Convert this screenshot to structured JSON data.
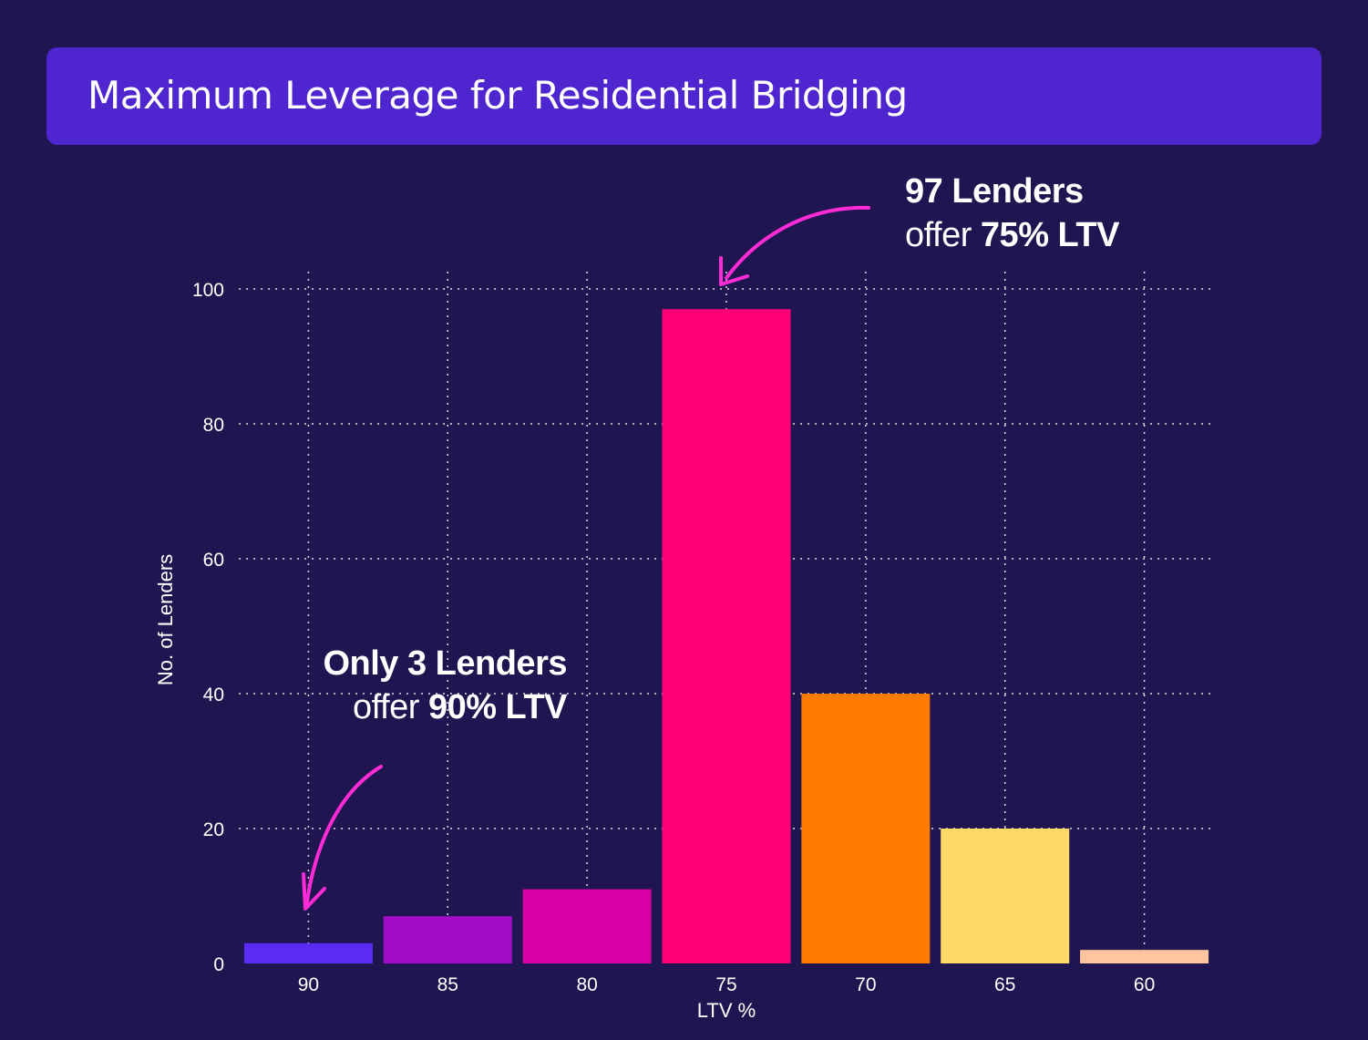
{
  "title": "Maximum Leverage for Residential Bridging",
  "colors": {
    "background": "#1f1550",
    "banner": "#4e25cf",
    "grid": "#ffffff",
    "text": "#ffffff",
    "arrow": "#ff2bd6"
  },
  "annotations": {
    "top": {
      "line1": "97 Lenders",
      "line2_prefix": "offer ",
      "line2_strong": "75% LTV"
    },
    "left": {
      "line1": "Only 3 Lenders",
      "line2_prefix": "offer ",
      "line2_strong": "90% LTV"
    }
  },
  "chart_data": {
    "type": "bar",
    "title": "Maximum Leverage for Residential Bridging",
    "xlabel": "LTV %",
    "ylabel": "No. of Lenders",
    "categories": [
      "90",
      "85",
      "80",
      "75",
      "70",
      "65",
      "60"
    ],
    "values": [
      3,
      7,
      11,
      97,
      40,
      20,
      2
    ],
    "bar_colors": [
      "#5a2bf2",
      "#a20bc8",
      "#d800a4",
      "#ff0077",
      "#ff7a00",
      "#ffd966",
      "#ffc4a0"
    ],
    "ylim": [
      0,
      100
    ],
    "yticks": [
      0,
      20,
      40,
      60,
      80,
      100
    ],
    "grid": true,
    "legend": "none"
  }
}
